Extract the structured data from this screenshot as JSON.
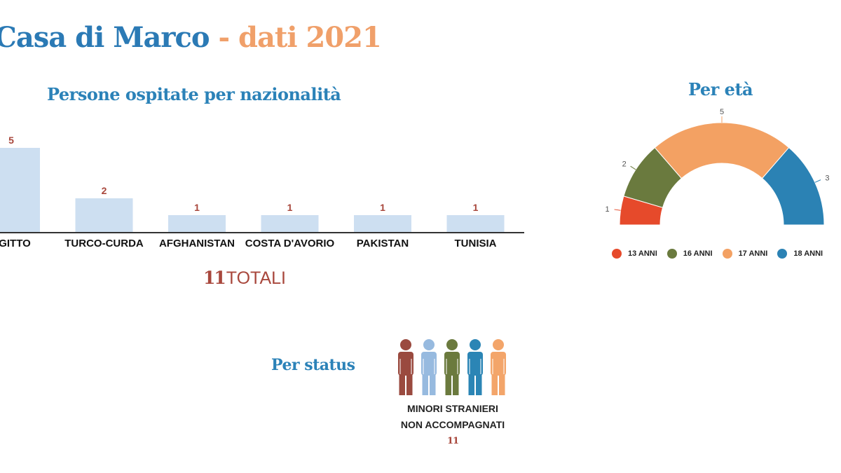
{
  "header": {
    "title_main": "Casa di Marco",
    "title_sep": " - ",
    "title_year": "dati 2021"
  },
  "nationality_chart": {
    "heading": "Persone ospitate per nazionalità",
    "total_number": "11",
    "total_label": "TOTALI"
  },
  "age_chart": {
    "heading": "Per età"
  },
  "status": {
    "heading": "Per status",
    "label_line1": "MINORI STRANIERI",
    "label_line2": "NON ACCOMPAGNATI",
    "count": "11",
    "figure_colors": [
      "#9a4a3f",
      "#97badf",
      "#6b7a3e",
      "#2b85b5",
      "#f3a56a"
    ]
  },
  "chart_data": [
    {
      "type": "bar",
      "title": "Persone ospitate per nazionalità",
      "categories": [
        "EGITTO",
        "TURCO-CURDA",
        "AFGHANISTAN",
        "COSTA D'AVORIO",
        "PAKISTAN",
        "TUNISIA"
      ],
      "values": [
        5,
        2,
        1,
        1,
        1,
        1
      ],
      "ylim": [
        0,
        5
      ],
      "bar_color": "#cddff1",
      "label_color": "#a8473c",
      "grid": false
    },
    {
      "type": "pie",
      "title": "Per età",
      "categories": [
        "13 ANNI",
        "16 ANNI",
        "17 ANNI",
        "18 ANNI"
      ],
      "values": [
        1,
        2,
        5,
        3
      ],
      "colors": [
        "#e64a2b",
        "#6a7a3e",
        "#f3a163",
        "#2b82b4"
      ],
      "legend": "bottom"
    }
  ]
}
